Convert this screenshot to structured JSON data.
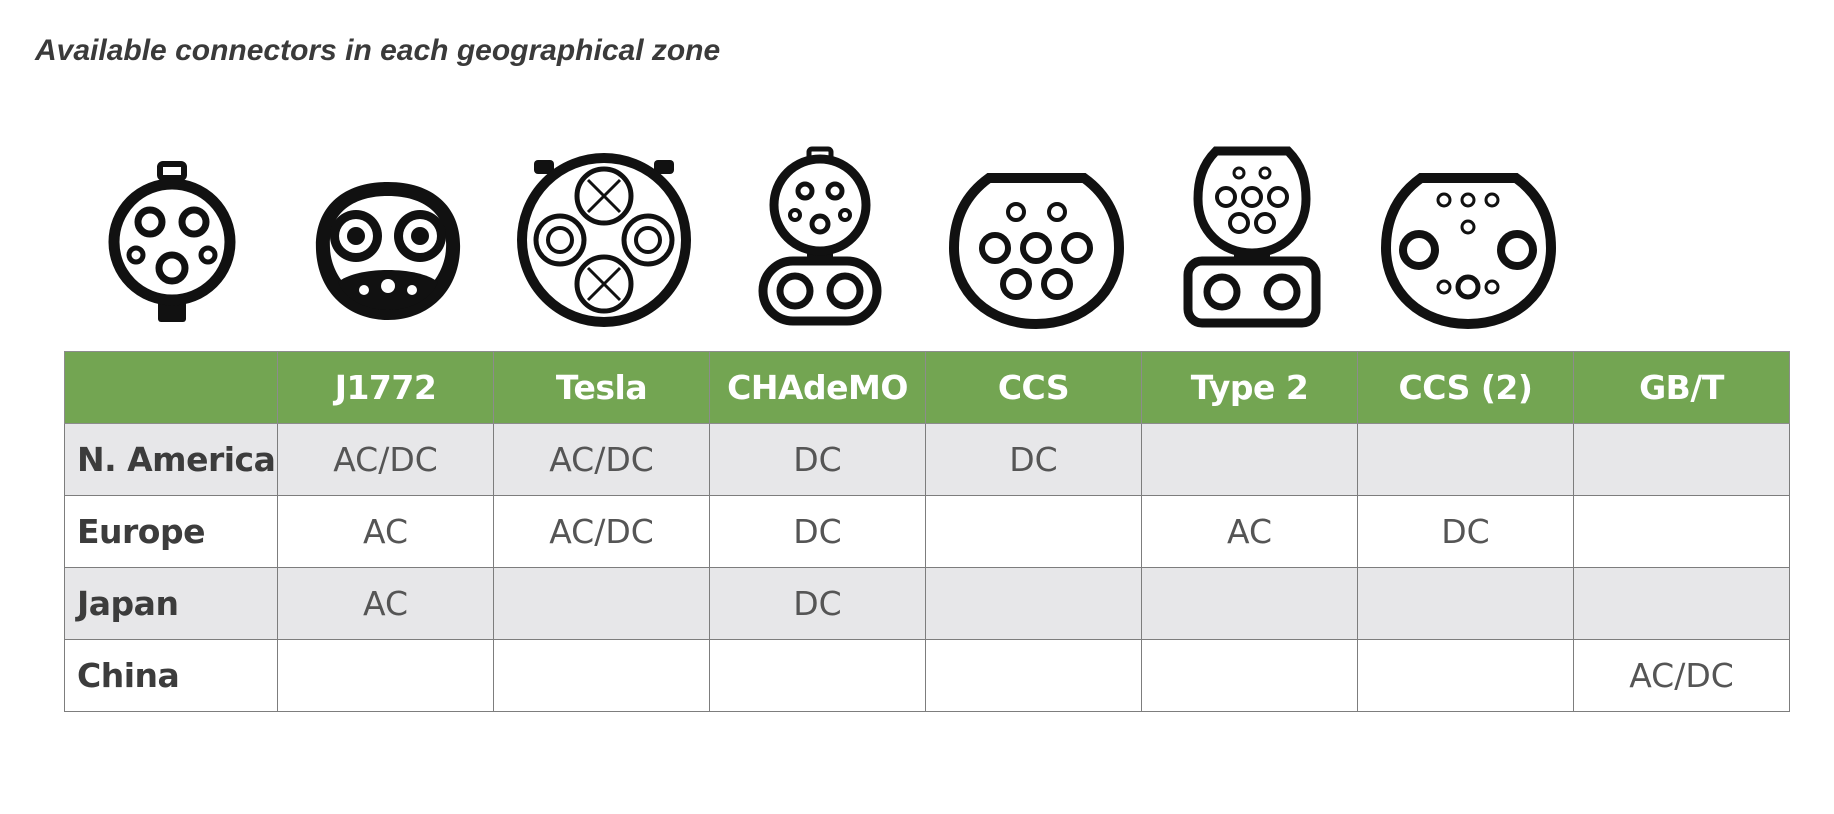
{
  "title": "Available connectors in each geographical zone",
  "chart_data": {
    "type": "table",
    "title": "Available connectors in each geographical zone",
    "columns": [
      "",
      "J1772",
      "Tesla",
      "CHAdeMO",
      "CCS",
      "Type 2",
      "CCS (2)",
      "GB/T"
    ],
    "rows": [
      {
        "region": "N. America",
        "cells": [
          "AC/DC",
          "AC/DC",
          "DC",
          "DC",
          "",
          "",
          ""
        ]
      },
      {
        "region": "Europe",
        "cells": [
          "AC",
          "AC/DC",
          "DC",
          "",
          "AC",
          "DC",
          ""
        ]
      },
      {
        "region": "Japan",
        "cells": [
          "AC",
          "",
          "DC",
          "",
          "",
          "",
          ""
        ]
      },
      {
        "region": "China",
        "cells": [
          "",
          "",
          "",
          "",
          "",
          "",
          "AC/DC"
        ]
      }
    ]
  },
  "icons": [
    "j1772-connector-icon",
    "tesla-connector-icon",
    "chademo-connector-icon",
    "ccs-combo1-connector-icon",
    "type2-connector-icon",
    "ccs-combo2-connector-icon",
    "gbt-connector-icon"
  ],
  "colors": {
    "header_bg": "#73a552",
    "shaded_row": "#e7e7e9",
    "icon": "#111111"
  }
}
